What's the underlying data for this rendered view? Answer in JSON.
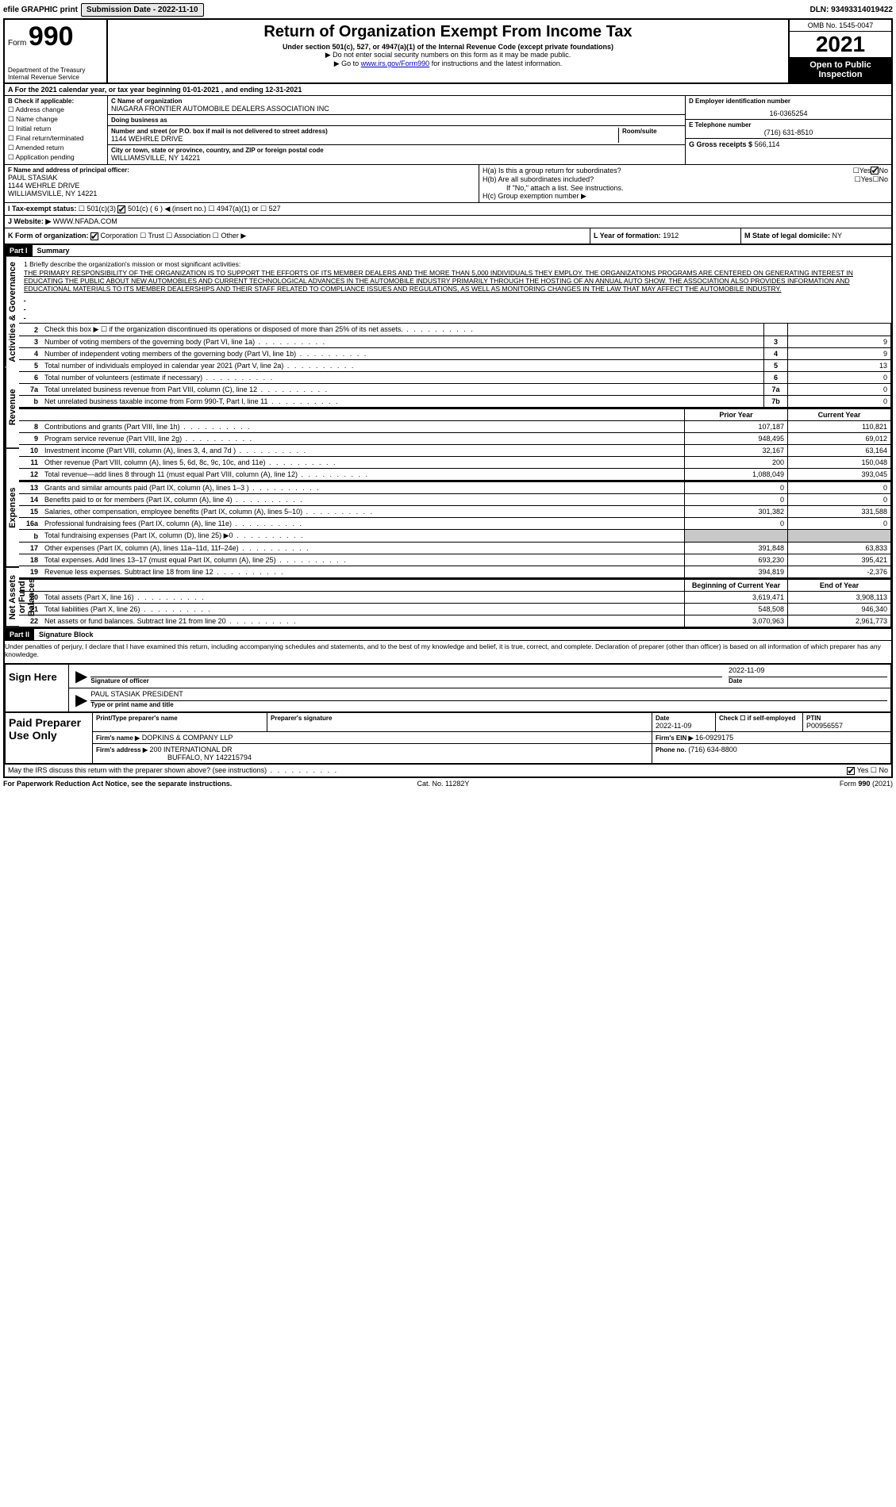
{
  "topbar": {
    "efile_label": "efile GRAPHIC print",
    "submission_label": "Submission Date - 2022-11-10",
    "dln": "DLN: 93493314019422"
  },
  "header": {
    "form_prefix": "Form",
    "form_number": "990",
    "dept": "Department of the Treasury",
    "irs": "Internal Revenue Service",
    "title": "Return of Organization Exempt From Income Tax",
    "sub1": "Under section 501(c), 527, or 4947(a)(1) of the Internal Revenue Code (except private foundations)",
    "sub2": "▶ Do not enter social security numbers on this form as it may be made public.",
    "sub3_pre": "▶ Go to ",
    "sub3_link": "www.irs.gov/Form990",
    "sub3_post": " for instructions and the latest information.",
    "omb": "OMB No. 1545-0047",
    "year": "2021",
    "open": "Open to Public Inspection"
  },
  "row_a": "A For the 2021 calendar year, or tax year beginning 01-01-2021    , and ending 12-31-2021",
  "col_b": {
    "title": "B Check if applicable:",
    "items": [
      "Address change",
      "Name change",
      "Initial return",
      "Final return/terminated",
      "Amended return",
      "Application pending"
    ]
  },
  "col_c": {
    "name_lbl": "C Name of organization",
    "name": "NIAGARA FRONTIER AUTOMOBILE DEALERS ASSOCIATION INC",
    "dba_lbl": "Doing business as",
    "dba": "",
    "street_lbl": "Number and street (or P.O. box if mail is not delivered to street address)",
    "street": "1144 WEHRLE DRIVE",
    "room_lbl": "Room/suite",
    "city_lbl": "City or town, state or province, country, and ZIP or foreign postal code",
    "city": "WILLIAMSVILLE, NY  14221"
  },
  "col_d": {
    "ein_lbl": "D Employer identification number",
    "ein": "16-0365254",
    "tel_lbl": "E Telephone number",
    "tel": "(716) 631-8510",
    "gross_lbl": "G Gross receipts $",
    "gross": "566,114"
  },
  "col_f": {
    "lbl": "F  Name and address of principal officer:",
    "name": "PAUL STASIAK",
    "street": "1144 WEHRLE DRIVE",
    "city": "WILLIAMSVILLE, NY  14221"
  },
  "col_h": {
    "h1a": "H(a)  Is this a group return for subordinates?",
    "h1b": "H(b)  Are all subordinates included?",
    "h1c_note": "If \"No,\" attach a list. See instructions.",
    "h1c": "H(c)  Group exemption number ▶",
    "yes": "Yes",
    "no": "No"
  },
  "row_i": {
    "lbl": "I    Tax-exempt status:",
    "opts": [
      "501(c)(3)",
      "501(c) ( 6 ) ◀ (insert no.)",
      "4947(a)(1) or",
      "527"
    ]
  },
  "row_j": {
    "lbl": "J   Website: ▶",
    "val": "WWW.NFADA.COM"
  },
  "row_k": {
    "lbl": "K Form of organization:",
    "opts": [
      "Corporation",
      "Trust",
      "Association",
      "Other ▶"
    ]
  },
  "row_l": {
    "lbl": "L Year of formation:",
    "val": "1912"
  },
  "row_m": {
    "lbl": "M State of legal domicile:",
    "val": "NY"
  },
  "parts": {
    "p1_hdr": "Part I",
    "p1_title": "Summary",
    "p2_hdr": "Part II",
    "p2_title": "Signature Block"
  },
  "vtabs": {
    "gov": "Activities & Governance",
    "rev": "Revenue",
    "exp": "Expenses",
    "net": "Net Assets or Fund Balances"
  },
  "mission": {
    "lbl": "1   Briefly describe the organization's mission or most significant activities:",
    "text": "THE PRIMARY RESPONSIBILITY OF THE ORGANIZATION IS TO SUPPORT THE EFFORTS OF ITS MEMBER DEALERS AND THE MORE THAN 5,000 INDIVIDUALS THEY EMPLOY. THE ORGANIZATIONS PROGRAMS ARE CENTERED ON GENERATING INTEREST IN EDUCATING THE PUBLIC ABOUT NEW AUTOMOBILES AND CURRENT TECHNOLOGICAL ADVANCES IN THE AUTOMOBILE INDUSTRY PRIMARILY THROUGH THE HOSTING OF AN ANNUAL AUTO SHOW. THE ASSOCIATION ALSO PROVIDES INFORMATION AND EDUCATIONAL MATERIALS TO ITS MEMBER DEALERSHIPS AND THEIR STAFF RELATED TO COMPLIANCE ISSUES AND REGULATIONS, AS WELL AS MONITORING CHANGES IN THE LAW THAT MAY AFFECT THE AUTOMOBILE INDUSTRY."
  },
  "gov_lines": [
    {
      "n": "2",
      "d": "Check this box ▶ ☐ if the organization discontinued its operations or disposed of more than 25% of its net assets.",
      "k": "",
      "v": ""
    },
    {
      "n": "3",
      "d": "Number of voting members of the governing body (Part VI, line 1a)",
      "k": "3",
      "v": "9"
    },
    {
      "n": "4",
      "d": "Number of independent voting members of the governing body (Part VI, line 1b)",
      "k": "4",
      "v": "9"
    },
    {
      "n": "5",
      "d": "Total number of individuals employed in calendar year 2021 (Part V, line 2a)",
      "k": "5",
      "v": "13"
    },
    {
      "n": "6",
      "d": "Total number of volunteers (estimate if necessary)",
      "k": "6",
      "v": "0"
    },
    {
      "n": "7a",
      "d": "Total unrelated business revenue from Part VIII, column (C), line 12",
      "k": "7a",
      "v": "0"
    },
    {
      "n": "b",
      "d": "Net unrelated business taxable income from Form 990-T, Part I, line 11",
      "k": "7b",
      "v": "0"
    }
  ],
  "col_hdrs": {
    "prior": "Prior Year",
    "current": "Current Year"
  },
  "rev_lines": [
    {
      "n": "8",
      "d": "Contributions and grants (Part VIII, line 1h)",
      "p": "107,187",
      "c": "110,821"
    },
    {
      "n": "9",
      "d": "Program service revenue (Part VIII, line 2g)",
      "p": "948,495",
      "c": "69,012"
    },
    {
      "n": "10",
      "d": "Investment income (Part VIII, column (A), lines 3, 4, and 7d )",
      "p": "32,167",
      "c": "63,164"
    },
    {
      "n": "11",
      "d": "Other revenue (Part VIII, column (A), lines 5, 6d, 8c, 9c, 10c, and 11e)",
      "p": "200",
      "c": "150,048"
    },
    {
      "n": "12",
      "d": "Total revenue—add lines 8 through 11 (must equal Part VIII, column (A), line 12)",
      "p": "1,088,049",
      "c": "393,045"
    }
  ],
  "exp_lines": [
    {
      "n": "13",
      "d": "Grants and similar amounts paid (Part IX, column (A), lines 1–3 )",
      "p": "0",
      "c": "0"
    },
    {
      "n": "14",
      "d": "Benefits paid to or for members (Part IX, column (A), line 4)",
      "p": "0",
      "c": "0"
    },
    {
      "n": "15",
      "d": "Salaries, other compensation, employee benefits (Part IX, column (A), lines 5–10)",
      "p": "301,382",
      "c": "331,588"
    },
    {
      "n": "16a",
      "d": "Professional fundraising fees (Part IX, column (A), line 11e)",
      "p": "0",
      "c": "0"
    },
    {
      "n": "b",
      "d": "Total fundraising expenses (Part IX, column (D), line 25) ▶0",
      "p": "",
      "c": "",
      "shade": true
    },
    {
      "n": "17",
      "d": "Other expenses (Part IX, column (A), lines 11a–11d, 11f–24e)",
      "p": "391,848",
      "c": "63,833"
    },
    {
      "n": "18",
      "d": "Total expenses. Add lines 13–17 (must equal Part IX, column (A), line 25)",
      "p": "693,230",
      "c": "395,421"
    },
    {
      "n": "19",
      "d": "Revenue less expenses. Subtract line 18 from line 12",
      "p": "394,819",
      "c": "-2,376"
    }
  ],
  "net_hdrs": {
    "beg": "Beginning of Current Year",
    "end": "End of Year"
  },
  "net_lines": [
    {
      "n": "20",
      "d": "Total assets (Part X, line 16)",
      "p": "3,619,471",
      "c": "3,908,113"
    },
    {
      "n": "21",
      "d": "Total liabilities (Part X, line 26)",
      "p": "548,508",
      "c": "946,340"
    },
    {
      "n": "22",
      "d": "Net assets or fund balances. Subtract line 21 from line 20",
      "p": "3,070,963",
      "c": "2,961,773"
    }
  ],
  "penalties": "Under penalties of perjury, I declare that I have examined this return, including accompanying schedules and statements, and to the best of my knowledge and belief, it is true, correct, and complete. Declaration of preparer (other than officer) is based on all information of which preparer has any knowledge.",
  "sign": {
    "here": "Sign Here",
    "sig_lbl": "Signature of officer",
    "date_lbl": "Date",
    "date": "2022-11-09",
    "name": "PAUL STASIAK  PRESIDENT",
    "name_lbl": "Type or print name and title"
  },
  "paid": {
    "title": "Paid Preparer Use Only",
    "prep_name_lbl": "Print/Type preparer's name",
    "prep_sig_lbl": "Preparer's signature",
    "date_lbl": "Date",
    "date": "2022-11-09",
    "check_lbl": "Check ☐ if self-employed",
    "ptin_lbl": "PTIN",
    "ptin": "P00956557",
    "firm_name_lbl": "Firm's name     ▶",
    "firm_name": "DOPKINS & COMPANY LLP",
    "firm_ein_lbl": "Firm's EIN ▶",
    "firm_ein": "16-0929175",
    "firm_addr_lbl": "Firm's address ▶",
    "firm_addr1": "200 INTERNATIONAL DR",
    "firm_addr2": "BUFFALO, NY  142215794",
    "phone_lbl": "Phone no.",
    "phone": "(716) 634-8800"
  },
  "discuss": {
    "q": "May the IRS discuss this return with the preparer shown above? (see instructions)",
    "yes": "Yes",
    "no": "No"
  },
  "footer": {
    "pra": "For Paperwork Reduction Act Notice, see the separate instructions.",
    "cat": "Cat. No. 11282Y",
    "form": "Form 990 (2021)"
  }
}
